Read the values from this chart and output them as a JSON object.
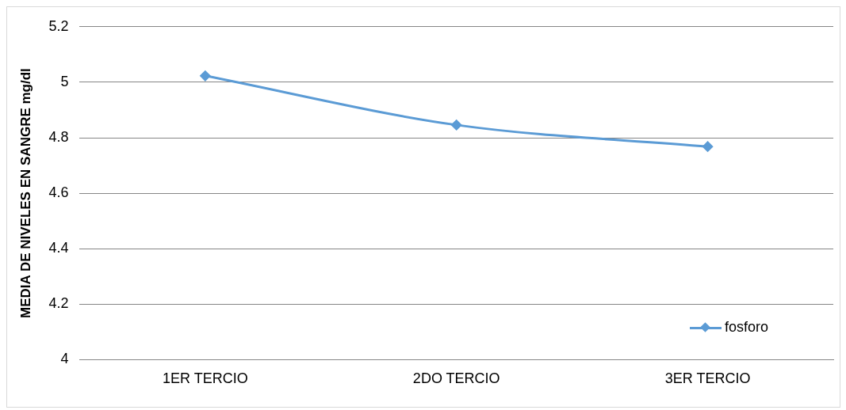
{
  "chart_data": {
    "type": "line",
    "categories": [
      "1ER TERCIO",
      "2DO TERCIO",
      "3ER TERCIO"
    ],
    "series": [
      {
        "name": "fosforo",
        "color": "#5b9bd5",
        "values": [
          5.023,
          4.846,
          4.768
        ]
      }
    ],
    "ylabel": "MEDIA DE NIVELES EN SANGRE mg/dl",
    "ylim": [
      4,
      5.2
    ],
    "yticks": [
      4,
      4.2,
      4.4,
      4.6,
      4.8,
      5,
      5.2
    ],
    "grid": "y",
    "legend": "bottom right",
    "marker": "diamond",
    "line_style": "solid"
  }
}
